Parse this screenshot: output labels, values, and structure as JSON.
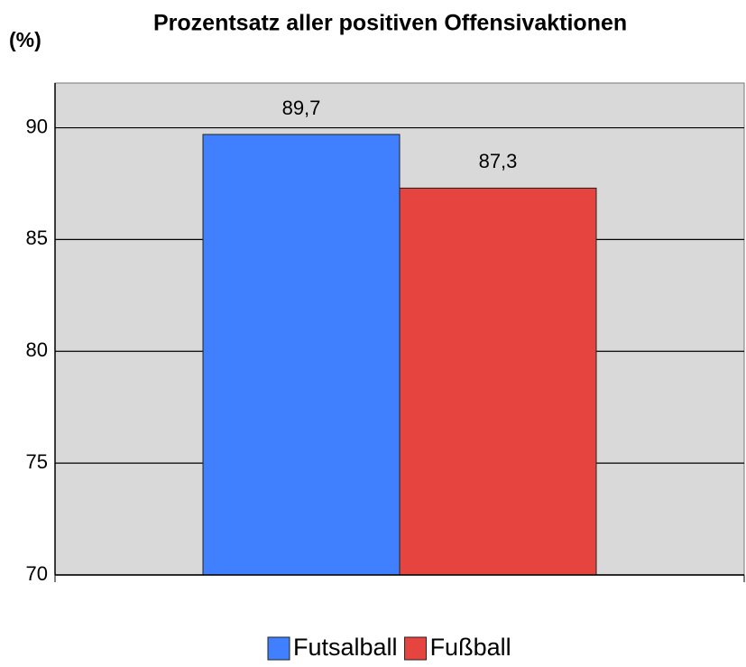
{
  "chart_data": {
    "type": "bar",
    "title": "Prozentsatz aller positiven Offensivaktionen",
    "y_label": "(%)",
    "categories": [
      null
    ],
    "series": [
      {
        "name": "Futsalball",
        "color": "#4080ff",
        "values": [
          89.7
        ],
        "value_labels": [
          "89,7"
        ]
      },
      {
        "name": "Fußball",
        "color": "#e5443f",
        "values": [
          87.3
        ],
        "value_labels": [
          "87,3"
        ]
      }
    ],
    "ylim": [
      70,
      92
    ],
    "yticks": [
      70,
      75,
      80,
      85,
      90
    ],
    "grid": true,
    "legend": "bottom"
  }
}
